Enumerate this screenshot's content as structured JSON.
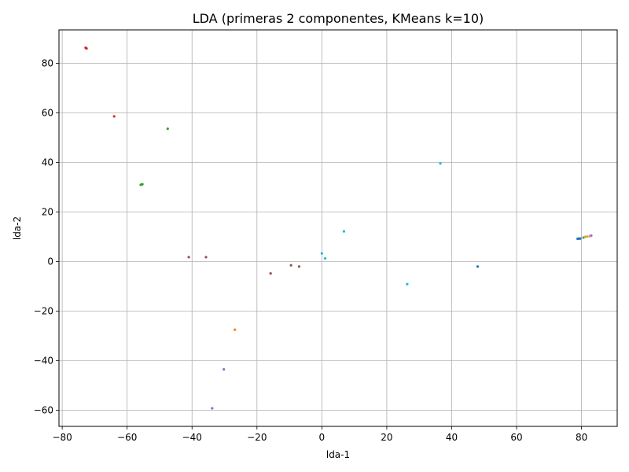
{
  "chart_data": {
    "type": "scatter",
    "title": "LDA (primeras 2 componentes, KMeans k=10)",
    "xlabel": "lda-1",
    "ylabel": "lda-2",
    "xlim": [
      -81,
      91
    ],
    "ylim": [
      -66.5,
      93.5
    ],
    "xticks": [
      -80,
      -60,
      -40,
      -20,
      0,
      20,
      40,
      60,
      80
    ],
    "yticks": [
      -60,
      -40,
      -20,
      0,
      20,
      40,
      60,
      80
    ],
    "xtick_labels": [
      "−80",
      "−60",
      "−40",
      "−20",
      "0",
      "20",
      "40",
      "60",
      "80"
    ],
    "ytick_labels": [
      "−60",
      "−40",
      "−20",
      "0",
      "20",
      "40",
      "60",
      "80"
    ],
    "grid": true,
    "series": [
      {
        "color": "#1f77b4",
        "points": [
          [
            78.8,
            9.2
          ],
          [
            79.2,
            9.3
          ],
          [
            79.6,
            9.3
          ],
          [
            48.0,
            -2.0
          ]
        ]
      },
      {
        "color": "#ff7f0e",
        "points": [
          [
            -26.8,
            -27.5
          ]
        ]
      },
      {
        "color": "#2ca02c",
        "points": [
          [
            -55.8,
            31.0
          ],
          [
            -55.3,
            31.2
          ],
          [
            -47.5,
            53.6
          ]
        ]
      },
      {
        "color": "#d62728",
        "points": [
          [
            -72.8,
            86.3
          ],
          [
            -72.5,
            86.0
          ],
          [
            -64.0,
            58.6
          ]
        ]
      },
      {
        "color": "#9467bd",
        "points": [
          [
            -33.8,
            -59.2
          ],
          [
            -30.2,
            -43.5
          ],
          [
            83.0,
            10.5
          ]
        ]
      },
      {
        "color": "#8c564b",
        "points": [
          [
            -41.0,
            1.8
          ],
          [
            -35.7,
            1.8
          ],
          [
            -15.8,
            -4.8
          ],
          [
            -9.5,
            -1.5
          ],
          [
            -7.0,
            -2.0
          ]
        ]
      },
      {
        "color": "#e377c2",
        "points": [
          [
            82.6,
            10.3
          ]
        ]
      },
      {
        "color": "#7f7f7f",
        "points": [
          [
            80.6,
            9.7
          ]
        ]
      },
      {
        "color": "#bcbd22",
        "points": [
          [
            81.2,
            10.0
          ],
          [
            81.8,
            10.1
          ]
        ]
      },
      {
        "color": "#17becf",
        "points": [
          [
            0.0,
            3.3
          ],
          [
            1.0,
            1.3
          ],
          [
            6.8,
            12.2
          ],
          [
            26.3,
            -9.1
          ],
          [
            36.5,
            39.6
          ]
        ]
      }
    ]
  }
}
